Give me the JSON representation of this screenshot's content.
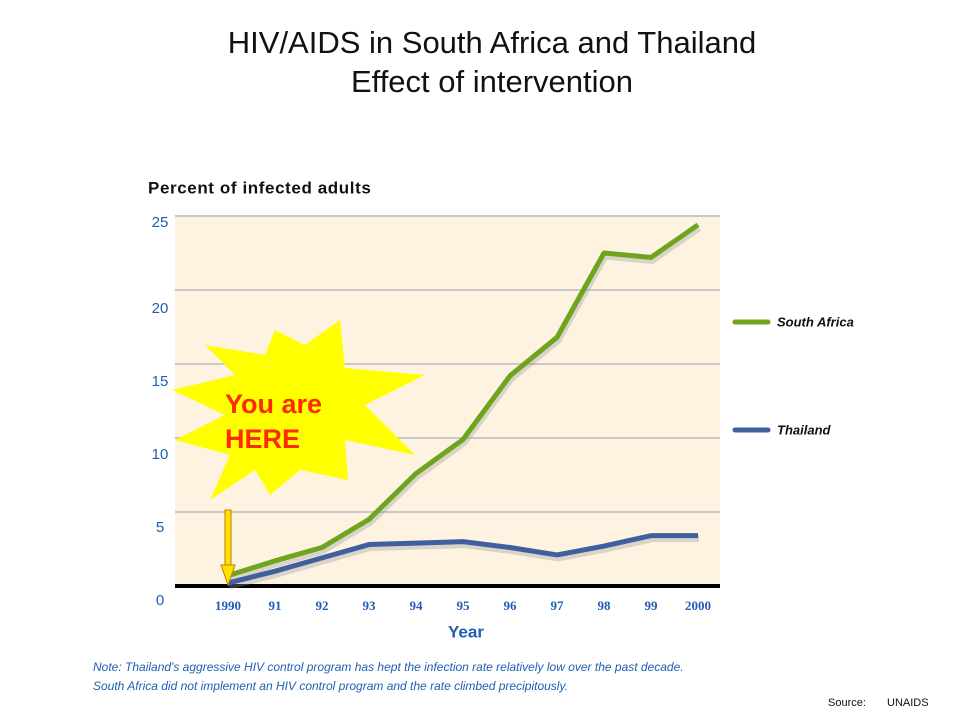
{
  "chart_data": {
    "type": "line",
    "title": "HIV/AIDS in South Africa and Thailand",
    "subtitle": "Effect of intervention",
    "y_label": "Percent of infected adults",
    "x_label": "Year",
    "categories": [
      "1990",
      "91",
      "92",
      "93",
      "94",
      "95",
      "96",
      "97",
      "98",
      "99",
      "2000"
    ],
    "series": [
      {
        "name": "South Africa",
        "color": "#6fa51e",
        "values": [
          0.7,
          1.7,
          2.6,
          4.5,
          7.6,
          9.9,
          14.2,
          16.8,
          22.5,
          22.2,
          24.4
        ]
      },
      {
        "name": "Thailand",
        "color": "#3f5f9f",
        "values": [
          0.2,
          1.0,
          1.9,
          2.8,
          2.9,
          3.0,
          2.6,
          2.1,
          2.7,
          3.4,
          3.4
        ]
      }
    ],
    "ylim": [
      0,
      25
    ],
    "yticks": [
      0,
      5,
      10,
      15,
      20,
      25
    ],
    "grid": true,
    "annotation": [
      "You are",
      "HERE"
    ],
    "note": [
      "Note: Thailand's aggressive HIV control program has hept the infection rate relatively low over the past decade.",
      "South Africa did not implement an HIV control program and the rate climbed precipitously."
    ],
    "source": [
      "Source:",
      "UNAIDS"
    ]
  }
}
